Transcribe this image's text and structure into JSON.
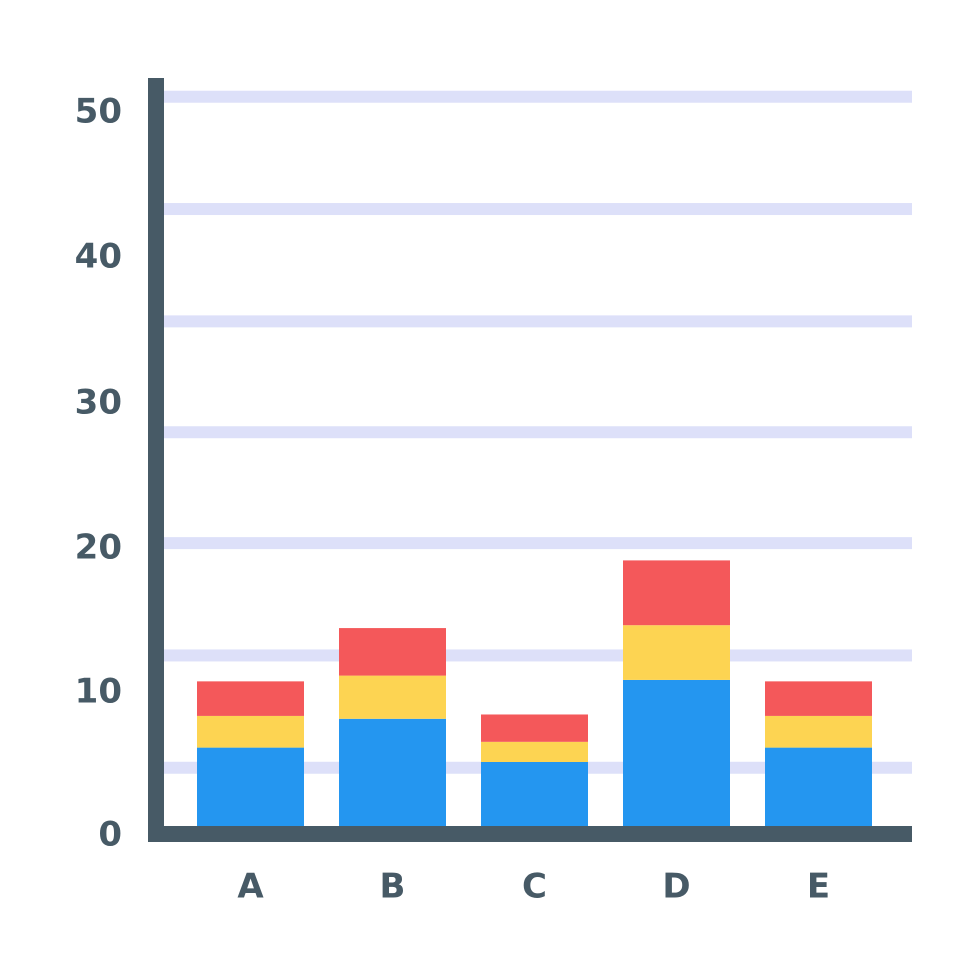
{
  "chart_data": {
    "type": "bar",
    "stacked": true,
    "title": "",
    "xlabel": "",
    "ylabel": "",
    "categories": [
      "A",
      "B",
      "C",
      "D",
      "E"
    ],
    "series": [
      {
        "values": [
          6,
          8,
          5,
          10.7,
          6
        ],
        "color": "#2496f0"
      },
      {
        "values": [
          8.2,
          11,
          6.4,
          14.5,
          8.2
        ],
        "color": "#fdd452"
      },
      {
        "values": [
          10.6,
          14.3,
          8.3,
          19,
          10.6
        ],
        "color": "#f4585a"
      }
    ],
    "y_ticks": [
      0,
      10,
      20,
      30,
      40,
      50
    ],
    "ylim": [
      0,
      52
    ],
    "grid": true,
    "legend": "none",
    "colors": {
      "axis": "#475a66",
      "grid": "#dde0f9",
      "tick_text": "#475a66"
    }
  }
}
